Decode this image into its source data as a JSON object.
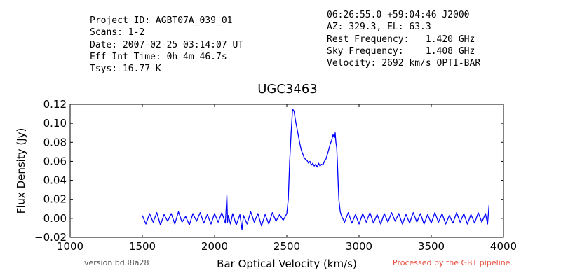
{
  "header": {
    "left": [
      "Project ID: AGBT07A_039_01",
      "Scans: 1-2",
      "Date: 2007-02-25 03:14:07 UT",
      "Eff Int Time: 0h 4m 46.7s",
      "Tsys: 16.77 K"
    ],
    "right": [
      "06:26:55.0 +59:04:46 J2000",
      "AZ: 329.3, EL: 63.3",
      "Rest Frequency:   1.420 GHz",
      "Sky Frequency:    1.408 GHz",
      "Velocity: 2692 km/s OPTI-BAR"
    ]
  },
  "footer": {
    "version": "version bd38a28",
    "pipeline": "Processed by the GBT pipeline."
  },
  "colors": {
    "line": "#0000ff",
    "pipeline_text": "#e74c3c"
  },
  "chart_data": {
    "type": "line",
    "title": "UGC3463",
    "xlabel": "Bar Optical Velocity (km/s)",
    "ylabel": "Flux Density (Jy)",
    "xlim": [
      1000,
      4000
    ],
    "ylim": [
      -0.02,
      0.12
    ],
    "xticks": [
      1000,
      1500,
      2000,
      2500,
      3000,
      3500,
      4000
    ],
    "xtick_labels": [
      "1000",
      "1500",
      "2000",
      "2500",
      "3000",
      "3500",
      "4000"
    ],
    "yticks": [
      -0.02,
      0.0,
      0.02,
      0.04,
      0.06,
      0.08,
      0.1,
      0.12
    ],
    "ytick_labels": [
      "−0.02",
      "0.00",
      "0.02",
      "0.04",
      "0.06",
      "0.08",
      "0.10",
      "0.12"
    ],
    "grid": false,
    "series": [
      {
        "x": [
          1500,
          1525,
          1550,
          1575,
          1600,
          1625,
          1650,
          1675,
          1700,
          1725,
          1750,
          1775,
          1800,
          1825,
          1850,
          1875,
          1900,
          1925,
          1950,
          1975,
          2000,
          2025,
          2050,
          2075,
          2085,
          2090,
          2095,
          2110,
          2125,
          2150,
          2175,
          2190,
          2200,
          2225,
          2250,
          2275,
          2300,
          2325,
          2350,
          2375,
          2400,
          2425,
          2450,
          2475,
          2500,
          2510,
          2520,
          2530,
          2540,
          2550,
          2560,
          2570,
          2580,
          2590,
          2600,
          2610,
          2620,
          2630,
          2640,
          2650,
          2660,
          2670,
          2680,
          2690,
          2700,
          2710,
          2720,
          2730,
          2740,
          2750,
          2760,
          2770,
          2780,
          2790,
          2800,
          2810,
          2820,
          2830,
          2835,
          2840,
          2845,
          2850,
          2855,
          2860,
          2870,
          2880,
          2900,
          2925,
          2950,
          2975,
          3000,
          3025,
          3050,
          3075,
          3100,
          3125,
          3150,
          3175,
          3200,
          3225,
          3250,
          3275,
          3300,
          3325,
          3350,
          3375,
          3400,
          3425,
          3450,
          3475,
          3500,
          3525,
          3550,
          3575,
          3600,
          3625,
          3650,
          3675,
          3700,
          3725,
          3750,
          3775,
          3800,
          3825,
          3850,
          3875,
          3890,
          3900
        ],
        "y": [
          0.003,
          -0.006,
          0.005,
          -0.004,
          0.006,
          -0.007,
          0.004,
          -0.003,
          0.005,
          -0.006,
          0.007,
          -0.004,
          0.002,
          -0.007,
          0.005,
          -0.003,
          0.006,
          -0.005,
          0.004,
          -0.006,
          0.005,
          -0.004,
          0.006,
          -0.005,
          0.024,
          -0.004,
          0.003,
          -0.006,
          0.005,
          -0.007,
          0.004,
          -0.012,
          0.003,
          -0.006,
          0.007,
          -0.004,
          0.005,
          -0.008,
          0.004,
          -0.006,
          0.006,
          -0.003,
          0.004,
          -0.002,
          0.005,
          0.02,
          0.06,
          0.09,
          0.115,
          0.113,
          0.103,
          0.095,
          0.087,
          0.079,
          0.072,
          0.068,
          0.064,
          0.062,
          0.061,
          0.058,
          0.06,
          0.056,
          0.058,
          0.055,
          0.057,
          0.054,
          0.058,
          0.055,
          0.057,
          0.056,
          0.06,
          0.062,
          0.067,
          0.072,
          0.078,
          0.082,
          0.088,
          0.085,
          0.09,
          0.08,
          0.075,
          0.06,
          0.04,
          0.02,
          0.007,
          0.002,
          -0.004,
          0.006,
          -0.005,
          0.004,
          -0.006,
          0.005,
          -0.004,
          0.006,
          -0.005,
          0.004,
          -0.006,
          0.005,
          -0.004,
          0.006,
          -0.003,
          0.005,
          -0.006,
          0.004,
          -0.005,
          0.006,
          -0.004,
          0.005,
          -0.006,
          0.004,
          -0.005,
          0.006,
          -0.004,
          0.005,
          -0.006,
          0.003,
          -0.005,
          0.006,
          -0.004,
          0.005,
          -0.006,
          0.004,
          -0.005,
          0.006,
          -0.004,
          0.005,
          -0.006,
          0.014
        ]
      }
    ]
  }
}
